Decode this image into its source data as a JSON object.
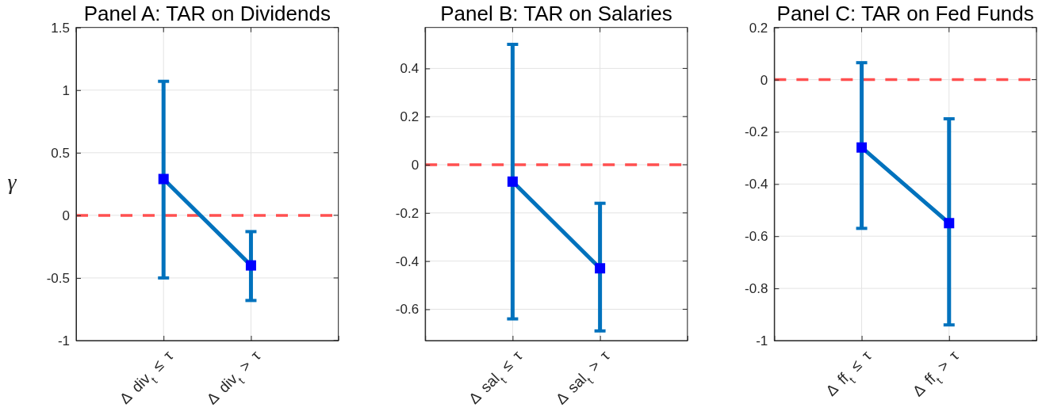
{
  "chart_data": [
    {
      "type": "line",
      "title": "Panel A: TAR on Dividends",
      "ylabel": "γ",
      "categories": [
        null,
        "Δ div$_{t}$ ≤ τ",
        "Δ div$_{t}$ > τ",
        null
      ],
      "ylim": [
        -1,
        1.5
      ],
      "yticks": [
        -1,
        -0.5,
        0,
        0.5,
        1,
        1.5
      ],
      "grid": true,
      "marker": "square",
      "series": [
        {
          "color": "#0072bd",
          "colors": [
            null,
            "#0000ff",
            "#0000ff",
            null
          ],
          "values": [
            null,
            0.29,
            -0.4,
            null
          ],
          "errors": [
            null,
            [
              -0.5,
              1.07
            ],
            [
              -0.68,
              -0.13
            ],
            null
          ]
        }
      ],
      "ref_lines": [
        {
          "axis": "y",
          "value": 0,
          "color": "#ff5050",
          "line_style": "dashed"
        }
      ]
    },
    {
      "type": "line",
      "title": "Panel B: TAR on Salaries",
      "categories": [
        null,
        "Δ sal$_{t}$ ≤ τ",
        "Δ sal$_{t}$ > τ",
        null
      ],
      "ylim": [
        -0.73,
        0.57
      ],
      "yticks": [
        -0.6,
        -0.4,
        -0.2,
        0,
        0.2,
        0.4
      ],
      "grid": true,
      "marker": "square",
      "series": [
        {
          "color": "#0072bd",
          "colors": [
            null,
            "#0000ff",
            "#0000ff",
            null
          ],
          "values": [
            null,
            -0.07,
            -0.43,
            null
          ],
          "errors": [
            null,
            [
              -0.64,
              0.5
            ],
            [
              -0.69,
              -0.16
            ],
            null
          ]
        }
      ],
      "ref_lines": [
        {
          "axis": "y",
          "value": 0,
          "color": "#ff5050",
          "line_style": "dashed"
        }
      ]
    },
    {
      "type": "line",
      "title": "Panel C: TAR on Fed Funds",
      "categories": [
        null,
        "Δ ff$_{t}$ ≤ τ",
        "Δ ff$_{t}$ > τ",
        null
      ],
      "ylim": [
        -1,
        0.2
      ],
      "yticks": [
        -1,
        -0.8,
        -0.6,
        -0.4,
        -0.2,
        0,
        0.2
      ],
      "grid": true,
      "marker": "square",
      "series": [
        {
          "color": "#0072bd",
          "colors": [
            null,
            "#0000ff",
            "#0000ff",
            null
          ],
          "values": [
            null,
            -0.26,
            -0.55,
            null
          ],
          "errors": [
            null,
            [
              -0.57,
              0.065
            ],
            [
              -0.94,
              -0.15
            ],
            null
          ]
        }
      ],
      "ref_lines": [
        {
          "axis": "y",
          "value": 0,
          "color": "#ff5050",
          "line_style": "dashed"
        }
      ]
    }
  ]
}
